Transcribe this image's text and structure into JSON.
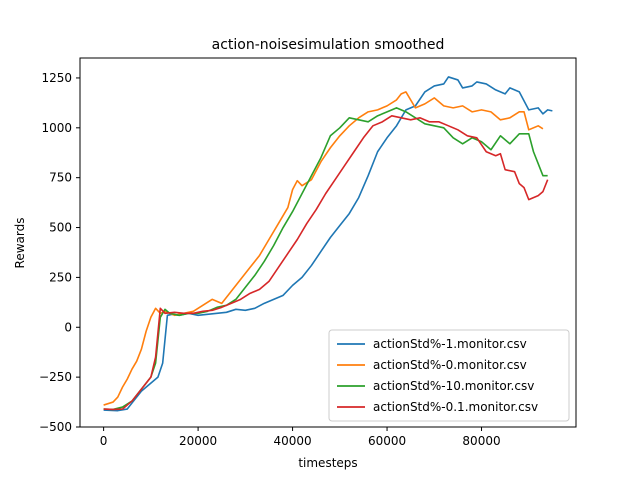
{
  "chart_data": {
    "type": "line",
    "title": "action-noisesimulation smoothed",
    "xlabel": "timesteps",
    "ylabel": "Rewards",
    "xlim": [
      -5000,
      100000
    ],
    "ylim": [
      -500,
      1350
    ],
    "xticks": [
      0,
      20000,
      40000,
      60000,
      80000
    ],
    "xtick_labels": [
      "0",
      "20000",
      "40000",
      "60000",
      "80000"
    ],
    "yticks": [
      -500,
      -250,
      0,
      250,
      500,
      750,
      1000,
      1250
    ],
    "ytick_labels": [
      "−500",
      "−250",
      "0",
      "250",
      "500",
      "750",
      "1000",
      "1250"
    ],
    "grid": false,
    "legend_position": "lower-right",
    "series": [
      {
        "name": "actionStd%-1.monitor.csv",
        "color": "#1f77b4",
        "points": [
          [
            0,
            -415
          ],
          [
            3000,
            -418
          ],
          [
            5000,
            -410
          ],
          [
            6000,
            -380
          ],
          [
            8000,
            -320
          ],
          [
            10000,
            -280
          ],
          [
            11500,
            -250
          ],
          [
            12500,
            -180
          ],
          [
            13500,
            60
          ],
          [
            14500,
            65
          ],
          [
            16000,
            60
          ],
          [
            18000,
            70
          ],
          [
            20000,
            60
          ],
          [
            22000,
            65
          ],
          [
            24000,
            70
          ],
          [
            26000,
            75
          ],
          [
            28000,
            90
          ],
          [
            30000,
            85
          ],
          [
            32000,
            95
          ],
          [
            34000,
            120
          ],
          [
            36000,
            140
          ],
          [
            38000,
            160
          ],
          [
            40000,
            210
          ],
          [
            42000,
            250
          ],
          [
            44000,
            310
          ],
          [
            46000,
            380
          ],
          [
            48000,
            450
          ],
          [
            50000,
            510
          ],
          [
            52000,
            570
          ],
          [
            54000,
            650
          ],
          [
            56000,
            760
          ],
          [
            58000,
            880
          ],
          [
            60000,
            950
          ],
          [
            62000,
            1010
          ],
          [
            64000,
            1090
          ],
          [
            66000,
            1110
          ],
          [
            68000,
            1180
          ],
          [
            70000,
            1210
          ],
          [
            72000,
            1220
          ],
          [
            73000,
            1255
          ],
          [
            75000,
            1240
          ],
          [
            76000,
            1200
          ],
          [
            78000,
            1210
          ],
          [
            79000,
            1230
          ],
          [
            81000,
            1220
          ],
          [
            83000,
            1190
          ],
          [
            85000,
            1170
          ],
          [
            86000,
            1200
          ],
          [
            88000,
            1180
          ],
          [
            90000,
            1090
          ],
          [
            92000,
            1100
          ],
          [
            93000,
            1070
          ],
          [
            94000,
            1090
          ],
          [
            95000,
            1085
          ]
        ]
      },
      {
        "name": "actionStd%-0.monitor.csv",
        "color": "#ff7f0e",
        "points": [
          [
            0,
            -390
          ],
          [
            2000,
            -375
          ],
          [
            3000,
            -350
          ],
          [
            4000,
            -300
          ],
          [
            5000,
            -260
          ],
          [
            6000,
            -210
          ],
          [
            7000,
            -170
          ],
          [
            8000,
            -110
          ],
          [
            9000,
            -20
          ],
          [
            10000,
            50
          ],
          [
            11000,
            95
          ],
          [
            12000,
            70
          ],
          [
            13000,
            80
          ],
          [
            15000,
            60
          ],
          [
            17000,
            70
          ],
          [
            19000,
            80
          ],
          [
            21000,
            110
          ],
          [
            23000,
            140
          ],
          [
            25000,
            120
          ],
          [
            27000,
            180
          ],
          [
            29000,
            240
          ],
          [
            31000,
            300
          ],
          [
            33000,
            360
          ],
          [
            35000,
            440
          ],
          [
            37000,
            520
          ],
          [
            39000,
            600
          ],
          [
            40000,
            690
          ],
          [
            41000,
            735
          ],
          [
            42000,
            710
          ],
          [
            44000,
            740
          ],
          [
            46000,
            830
          ],
          [
            48000,
            900
          ],
          [
            50000,
            960
          ],
          [
            52000,
            1010
          ],
          [
            54000,
            1050
          ],
          [
            56000,
            1080
          ],
          [
            58000,
            1090
          ],
          [
            60000,
            1110
          ],
          [
            62000,
            1140
          ],
          [
            63000,
            1170
          ],
          [
            64000,
            1180
          ],
          [
            66000,
            1100
          ],
          [
            68000,
            1120
          ],
          [
            70000,
            1150
          ],
          [
            72000,
            1110
          ],
          [
            74000,
            1100
          ],
          [
            76000,
            1110
          ],
          [
            78000,
            1080
          ],
          [
            80000,
            1090
          ],
          [
            82000,
            1080
          ],
          [
            84000,
            1040
          ],
          [
            86000,
            1050
          ],
          [
            88000,
            1080
          ],
          [
            89000,
            1080
          ],
          [
            90000,
            990
          ],
          [
            92000,
            1010
          ],
          [
            93000,
            995
          ]
        ]
      },
      {
        "name": "actionStd%-10.monitor.csv",
        "color": "#2ca02c",
        "points": [
          [
            0,
            -410
          ],
          [
            2000,
            -412
          ],
          [
            4000,
            -400
          ],
          [
            6000,
            -370
          ],
          [
            8000,
            -310
          ],
          [
            10000,
            -250
          ],
          [
            11000,
            -180
          ],
          [
            12000,
            50
          ],
          [
            13000,
            90
          ],
          [
            14000,
            70
          ],
          [
            16000,
            60
          ],
          [
            18000,
            70
          ],
          [
            20000,
            70
          ],
          [
            22000,
            80
          ],
          [
            24000,
            100
          ],
          [
            26000,
            110
          ],
          [
            28000,
            140
          ],
          [
            30000,
            200
          ],
          [
            32000,
            260
          ],
          [
            34000,
            330
          ],
          [
            36000,
            410
          ],
          [
            38000,
            500
          ],
          [
            40000,
            580
          ],
          [
            42000,
            670
          ],
          [
            44000,
            760
          ],
          [
            46000,
            850
          ],
          [
            48000,
            960
          ],
          [
            50000,
            1000
          ],
          [
            52000,
            1050
          ],
          [
            54000,
            1040
          ],
          [
            56000,
            1030
          ],
          [
            58000,
            1060
          ],
          [
            60000,
            1080
          ],
          [
            62000,
            1100
          ],
          [
            64000,
            1080
          ],
          [
            66000,
            1050
          ],
          [
            68000,
            1020
          ],
          [
            70000,
            1010
          ],
          [
            72000,
            1000
          ],
          [
            74000,
            950
          ],
          [
            76000,
            920
          ],
          [
            78000,
            950
          ],
          [
            80000,
            930
          ],
          [
            82000,
            890
          ],
          [
            84000,
            960
          ],
          [
            86000,
            920
          ],
          [
            88000,
            970
          ],
          [
            90000,
            970
          ],
          [
            91000,
            880
          ],
          [
            92000,
            820
          ],
          [
            93000,
            760
          ],
          [
            94000,
            760
          ]
        ]
      },
      {
        "name": "actionStd%-0.1.monitor.csv",
        "color": "#d62728",
        "points": [
          [
            0,
            -410
          ],
          [
            2000,
            -412
          ],
          [
            4000,
            -410
          ],
          [
            6000,
            -370
          ],
          [
            8000,
            -310
          ],
          [
            10000,
            -250
          ],
          [
            11000,
            -150
          ],
          [
            12000,
            95
          ],
          [
            13000,
            70
          ],
          [
            15000,
            75
          ],
          [
            17000,
            70
          ],
          [
            19000,
            70
          ],
          [
            21000,
            80
          ],
          [
            23000,
            85
          ],
          [
            25000,
            100
          ],
          [
            27000,
            120
          ],
          [
            29000,
            140
          ],
          [
            31000,
            170
          ],
          [
            33000,
            190
          ],
          [
            35000,
            230
          ],
          [
            37000,
            300
          ],
          [
            39000,
            370
          ],
          [
            41000,
            440
          ],
          [
            43000,
            520
          ],
          [
            45000,
            590
          ],
          [
            47000,
            670
          ],
          [
            49000,
            740
          ],
          [
            51000,
            810
          ],
          [
            53000,
            880
          ],
          [
            55000,
            950
          ],
          [
            57000,
            1010
          ],
          [
            59000,
            1030
          ],
          [
            61000,
            1060
          ],
          [
            63000,
            1050
          ],
          [
            65000,
            1040
          ],
          [
            67000,
            1050
          ],
          [
            69000,
            1030
          ],
          [
            71000,
            1030
          ],
          [
            73000,
            1010
          ],
          [
            75000,
            990
          ],
          [
            77000,
            960
          ],
          [
            79000,
            950
          ],
          [
            81000,
            880
          ],
          [
            83000,
            860
          ],
          [
            84000,
            870
          ],
          [
            85000,
            790
          ],
          [
            87000,
            780
          ],
          [
            88000,
            720
          ],
          [
            89000,
            700
          ],
          [
            90000,
            640
          ],
          [
            92000,
            660
          ],
          [
            93000,
            680
          ],
          [
            94000,
            740
          ]
        ]
      }
    ]
  }
}
